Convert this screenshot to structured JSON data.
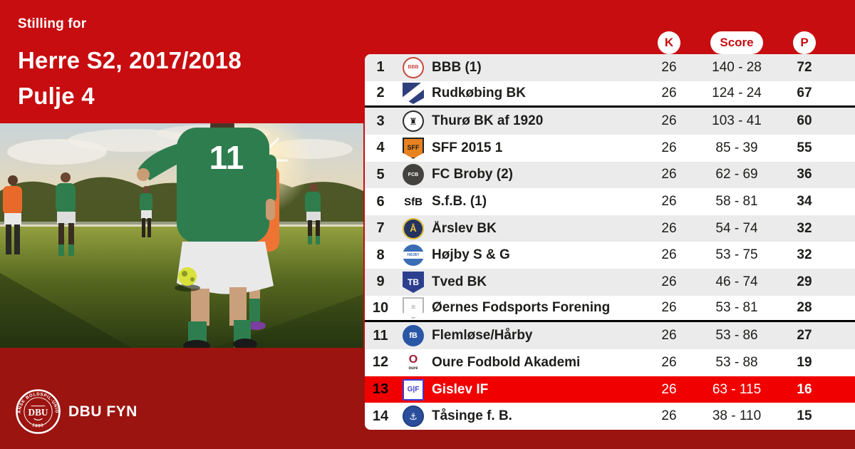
{
  "theme": {
    "brand_red": "#c70d10",
    "dark_red": "#9b1410",
    "highlight_red": "#f10000",
    "row_alt_bg": "#ebebeb",
    "row_bg": "#ffffff",
    "text_dark": "#1d1d1b",
    "text_white": "#ffffff"
  },
  "header": {
    "eyebrow": "Stilling for",
    "title_line1": "Herre S2, 2017/2018",
    "title_line2": "Pulje 4"
  },
  "photo": {
    "jersey_number": "11"
  },
  "footer": {
    "org_name": "DBU FYN",
    "seal_top": "DANSK BOLDSPIL-UNION",
    "seal_center": "DBU",
    "seal_bottom": "· 1889 ·"
  },
  "table": {
    "columns": [
      {
        "key": "k",
        "label": "K"
      },
      {
        "key": "score",
        "label": "Score"
      },
      {
        "key": "p",
        "label": "P"
      }
    ],
    "rows": [
      {
        "rank": "1",
        "team": "BBB (1)",
        "k": "26",
        "score": "140 - 28",
        "p": "72",
        "highlight": false,
        "separator_below": false,
        "logo": {
          "name": "bbb-logo",
          "shape": "circle",
          "bg": "#ffffff",
          "border": "#c5463c",
          "text": "BBB",
          "color": "#c5463c",
          "fs": 7
        }
      },
      {
        "rank": "2",
        "team": "Rudkøbing BK",
        "k": "26",
        "score": "124 - 24",
        "p": "67",
        "highlight": false,
        "separator_below": true,
        "logo": {
          "name": "rudkobing-bk-logo",
          "shape": "shield",
          "bg": "#2e3f7d",
          "band": "#ffffff",
          "tilt": -38,
          "text": "",
          "color": "#ffffff",
          "fs": 8
        }
      },
      {
        "rank": "3",
        "team": "Thurø BK af 1920",
        "k": "26",
        "score": "103 - 41",
        "p": "60",
        "highlight": false,
        "separator_below": false,
        "logo": {
          "name": "thuro-bk-logo",
          "shape": "circle",
          "bg": "#ffffff",
          "border": "#2b2b2b",
          "text": "♜",
          "color": "#222222",
          "fs": 13
        }
      },
      {
        "rank": "4",
        "team": "SFF 2015 1",
        "k": "26",
        "score": "85 - 39",
        "p": "55",
        "highlight": false,
        "separator_below": false,
        "logo": {
          "name": "sff-2015-logo",
          "shape": "shield",
          "bg": "#e8821e",
          "border": "#222222",
          "text": "SFF",
          "color": "#1a1a1a",
          "fs": 9
        }
      },
      {
        "rank": "5",
        "team": "FC Broby (2)",
        "k": "26",
        "score": "62 - 69",
        "p": "36",
        "highlight": false,
        "separator_below": false,
        "logo": {
          "name": "fc-broby-logo",
          "shape": "circle",
          "bg": "#43423e",
          "text": "FCB",
          "color": "#ffffff",
          "fs": 7
        }
      },
      {
        "rank": "6",
        "team": "S.f.B. (1)",
        "k": "26",
        "score": "58 - 81",
        "p": "34",
        "highlight": false,
        "separator_below": false,
        "logo": {
          "name": "sfb-logo",
          "shape": "plain",
          "text": "SfB",
          "color": "#111111",
          "fs": 15
        }
      },
      {
        "rank": "7",
        "team": "Årslev BK",
        "k": "26",
        "score": "54 - 74",
        "p": "32",
        "highlight": false,
        "separator_below": false,
        "logo": {
          "name": "aarslev-bk-logo",
          "shape": "circle",
          "bg": "#24335f",
          "border": "#e7c53b",
          "text": "Å",
          "color": "#e7c53b",
          "fs": 13
        }
      },
      {
        "rank": "8",
        "team": "Højby S & G",
        "k": "26",
        "score": "53 - 75",
        "p": "32",
        "highlight": false,
        "separator_below": false,
        "logo": {
          "name": "hojby-logo",
          "shape": "circle",
          "bg": "#3a6db4",
          "band": "#ffffff",
          "tilt": 0,
          "text": "HØJBY",
          "color": "#3a6db4",
          "fs": 5
        }
      },
      {
        "rank": "9",
        "team": "Tved BK",
        "k": "26",
        "score": "46 - 74",
        "p": "29",
        "highlight": false,
        "separator_below": false,
        "logo": {
          "name": "tved-bk-logo",
          "shape": "shield",
          "bg": "#2c3f8f",
          "text": "TB",
          "color": "#ffffff",
          "fs": 12
        }
      },
      {
        "rank": "10",
        "team": "Øernes Fodsports Forening",
        "k": "26",
        "score": "53 - 81",
        "p": "28",
        "highlight": false,
        "separator_below": true,
        "logo": {
          "name": "oernes-logo",
          "shape": "shield",
          "bg": "#fdfdfd",
          "border": "#b5b5b5",
          "text": "≡",
          "color": "#9a9a9a",
          "fs": 10
        }
      },
      {
        "rank": "11",
        "team": "Flemløse/Hårby",
        "k": "26",
        "score": "53 - 86",
        "p": "27",
        "highlight": false,
        "separator_below": false,
        "logo": {
          "name": "flemlose-haarby-logo",
          "shape": "circle",
          "bg": "#2b56a5",
          "text": "fB",
          "color": "#ffffff",
          "fs": 11
        }
      },
      {
        "rank": "12",
        "team": "Oure Fodbold Akademi",
        "k": "26",
        "score": "53 - 88",
        "p": "19",
        "highlight": false,
        "separator_below": false,
        "logo": {
          "name": "oure-logo",
          "shape": "plain",
          "text": "O",
          "color": "#9c1b30",
          "fs": 16,
          "sub": "oure",
          "subcolor": "#222222",
          "subfs": 6
        }
      },
      {
        "rank": "13",
        "team": "Gislev IF",
        "k": "26",
        "score": "63 - 115",
        "p": "16",
        "highlight": true,
        "separator_below": false,
        "logo": {
          "name": "gislev-if-logo",
          "shape": "square",
          "bg": "#ffffff",
          "border": "#3b3bd1",
          "text": "G|F",
          "color": "#3b3bd1",
          "fs": 10
        }
      },
      {
        "rank": "14",
        "team": "Tåsinge f. B.",
        "k": "26",
        "score": "38 - 110",
        "p": "15",
        "highlight": false,
        "separator_below": false,
        "logo": {
          "name": "taasinge-logo",
          "shape": "circle",
          "bg": "#2b4e9c",
          "border": "#23417f",
          "text": "⚓",
          "color": "#ffffff",
          "fs": 13
        }
      }
    ]
  },
  "chart_data": {
    "type": "table",
    "title": "Stilling for Herre S2, 2017/2018 Pulje 4",
    "columns": [
      "rank",
      "team",
      "K",
      "Score",
      "P"
    ],
    "rows": [
      [
        1,
        "BBB (1)",
        26,
        "140 - 28",
        72
      ],
      [
        2,
        "Rudkøbing BK",
        26,
        "124 - 24",
        67
      ],
      [
        3,
        "Thurø BK af 1920",
        26,
        "103 - 41",
        60
      ],
      [
        4,
        "SFF 2015 1",
        26,
        "85 - 39",
        55
      ],
      [
        5,
        "FC Broby (2)",
        26,
        "62 - 69",
        36
      ],
      [
        6,
        "S.f.B. (1)",
        26,
        "58 - 81",
        34
      ],
      [
        7,
        "Årslev BK",
        26,
        "54 - 74",
        32
      ],
      [
        8,
        "Højby S & G",
        26,
        "53 - 75",
        32
      ],
      [
        9,
        "Tved BK",
        26,
        "46 - 74",
        29
      ],
      [
        10,
        "Øernes Fodsports Forening",
        26,
        "53 - 81",
        28
      ],
      [
        11,
        "Flemløse/Hårby",
        26,
        "53 - 86",
        27
      ],
      [
        12,
        "Oure Fodbold Akademi",
        26,
        "53 - 88",
        19
      ],
      [
        13,
        "Gislev IF",
        26,
        "63 - 115",
        16
      ],
      [
        14,
        "Tåsinge f. B.",
        26,
        "38 - 110",
        15
      ]
    ],
    "highlighted_row_team": "Gislev IF",
    "separator_lines_after_rank": [
      2,
      10
    ]
  }
}
